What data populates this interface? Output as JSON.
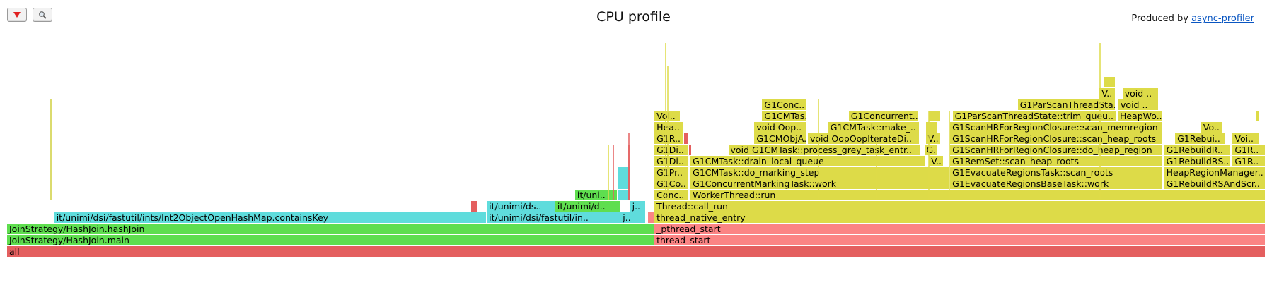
{
  "header": {
    "title": "CPU profile",
    "produced_prefix": "Produced by ",
    "produced_link": "async-profiler"
  },
  "toolbar": {
    "reverse_icon": "triangle-down-icon",
    "search_icon": "magnifier-icon"
  },
  "colors": {
    "red": "#e45f5f",
    "red_light": "#fb8484",
    "green": "#5fde4f",
    "green_dark": "#55d34b",
    "aqua": "#5fdcdc",
    "yellow": "#dddb48",
    "olive": "#cfcf3e",
    "link": "#0a56c2"
  },
  "frames": [
    {
      "level": 0,
      "start": 0.0,
      "end": 1.0,
      "color": "red",
      "label": "all"
    },
    {
      "level": 1,
      "start": 0.0,
      "end": 0.5144,
      "color": "green",
      "label": "JoinStrategy/HashJoin.main"
    },
    {
      "level": 1,
      "start": 0.5144,
      "end": 1.0,
      "color": "red_light",
      "label": "thread_start"
    },
    {
      "level": 2,
      "start": 0.0,
      "end": 0.5144,
      "color": "green",
      "label": "JoinStrategy/HashJoin.hashJoin"
    },
    {
      "level": 2,
      "start": 0.5144,
      "end": 1.0,
      "color": "red_light",
      "label": "_pthread_start"
    },
    {
      "level": 3,
      "start": 0.0375,
      "end": 0.3812,
      "color": "aqua",
      "label": "it/unimi/dsi/fastutil/ints/Int2ObjectOpenHashMap.containsKey"
    },
    {
      "level": 3,
      "start": 0.3812,
      "end": 0.4875,
      "color": "aqua",
      "label": "it/unimi/dsi/fastutil/in.."
    },
    {
      "level": 3,
      "start": 0.4875,
      "end": 0.5075,
      "color": "aqua",
      "label": "j.."
    },
    {
      "level": 3,
      "start": 0.5094,
      "end": 0.5144,
      "color": "red_light",
      "label": ""
    },
    {
      "level": 3,
      "start": 0.5144,
      "end": 1.0,
      "color": "yellow",
      "label": "thread_native_entry"
    },
    {
      "level": 4,
      "start": 0.3688,
      "end": 0.3738,
      "color": "red",
      "label": ""
    },
    {
      "level": 4,
      "start": 0.3812,
      "end": 0.4356,
      "color": "aqua",
      "label": "it/unimi/ds.."
    },
    {
      "level": 4,
      "start": 0.4356,
      "end": 0.4875,
      "color": "green",
      "label": "it/unimi/d.."
    },
    {
      "level": 4,
      "start": 0.495,
      "end": 0.5075,
      "color": "aqua",
      "label": "j.."
    },
    {
      "level": 4,
      "start": 0.5144,
      "end": 1.0,
      "color": "yellow",
      "label": "Thread::call_run"
    },
    {
      "level": 5,
      "start": 0.4513,
      "end": 0.485,
      "color": "green",
      "label": "it/uni.."
    },
    {
      "level": 5,
      "start": 0.485,
      "end": 0.495,
      "color": "aqua",
      "label": ""
    },
    {
      "level": 5,
      "start": 0.5144,
      "end": 0.5413,
      "color": "yellow",
      "label": "Conc.."
    },
    {
      "level": 5,
      "start": 0.5431,
      "end": 1.0,
      "color": "yellow",
      "label": "WorkerThread::run"
    },
    {
      "level": 6,
      "start": 0.485,
      "end": 0.495,
      "color": "aqua",
      "label": ""
    },
    {
      "level": 6,
      "start": 0.5144,
      "end": 0.5413,
      "color": "yellow",
      "label": "G1Co.."
    },
    {
      "level": 6,
      "start": 0.5431,
      "end": 0.7488,
      "color": "yellow",
      "label": "G1ConcurrentMarkingTask::work"
    },
    {
      "level": 6,
      "start": 0.7494,
      "end": 0.9181,
      "color": "yellow",
      "label": "G1EvacuateRegionsBaseTask::work"
    },
    {
      "level": 6,
      "start": 0.9194,
      "end": 1.0,
      "color": "yellow",
      "label": "G1RebuildRSAndScr.."
    },
    {
      "level": 7,
      "start": 0.485,
      "end": 0.495,
      "color": "aqua",
      "label": ""
    },
    {
      "level": 7,
      "start": 0.5144,
      "end": 0.5413,
      "color": "yellow",
      "label": "G1Pr.."
    },
    {
      "level": 7,
      "start": 0.5431,
      "end": 0.7488,
      "color": "yellow",
      "label": "G1CMTask::do_marking_step"
    },
    {
      "level": 7,
      "start": 0.7494,
      "end": 0.9181,
      "color": "yellow",
      "label": "G1EvacuateRegionsTask::scan_roots"
    },
    {
      "level": 7,
      "start": 0.9194,
      "end": 1.0,
      "color": "yellow",
      "label": "HeapRegionManager.."
    },
    {
      "level": 8,
      "start": 0.5144,
      "end": 0.5413,
      "color": "yellow",
      "label": "G1Di.."
    },
    {
      "level": 8,
      "start": 0.5431,
      "end": 0.73,
      "color": "yellow",
      "label": "G1CMTask::drain_local_queue"
    },
    {
      "level": 8,
      "start": 0.7325,
      "end": 0.7444,
      "color": "yellow",
      "label": "V.."
    },
    {
      "level": 8,
      "start": 0.7494,
      "end": 0.9181,
      "color": "yellow",
      "label": "G1RemSet::scan_heap_roots"
    },
    {
      "level": 8,
      "start": 0.9194,
      "end": 0.9725,
      "color": "yellow",
      "label": "G1RebuildRS.."
    },
    {
      "level": 8,
      "start": 0.9738,
      "end": 1.0,
      "color": "yellow",
      "label": "G1R.."
    },
    {
      "level": 9,
      "start": 0.5144,
      "end": 0.5413,
      "color": "yellow",
      "label": "G1Di.."
    },
    {
      "level": 9,
      "start": 0.5419,
      "end": 0.5444,
      "color": "red",
      "label": ""
    },
    {
      "level": 9,
      "start": 0.5731,
      "end": 0.7263,
      "color": "yellow",
      "label": "void G1CMTask::process_grey_task_entr.."
    },
    {
      "level": 9,
      "start": 0.7288,
      "end": 0.74,
      "color": "yellow",
      "label": "G.."
    },
    {
      "level": 9,
      "start": 0.7494,
      "end": 0.9181,
      "color": "yellow",
      "label": "G1ScanHRForRegionClosure::do_heap_region"
    },
    {
      "level": 9,
      "start": 0.9194,
      "end": 0.9725,
      "color": "yellow",
      "label": "G1RebuildR.."
    },
    {
      "level": 9,
      "start": 0.9738,
      "end": 1.0,
      "color": "yellow",
      "label": "G1R.."
    },
    {
      "level": 10,
      "start": 0.5144,
      "end": 0.5381,
      "color": "yellow",
      "label": "G1R.."
    },
    {
      "level": 10,
      "start": 0.5381,
      "end": 0.5413,
      "color": "red",
      "label": ""
    },
    {
      "level": 10,
      "start": 0.5938,
      "end": 0.635,
      "color": "yellow",
      "label": "G1CMObjA.."
    },
    {
      "level": 10,
      "start": 0.6363,
      "end": 0.725,
      "color": "yellow",
      "label": "void OopOopIterateDi.."
    },
    {
      "level": 10,
      "start": 0.73,
      "end": 0.7419,
      "color": "yellow",
      "label": "V.."
    },
    {
      "level": 10,
      "start": 0.7494,
      "end": 0.9181,
      "color": "yellow",
      "label": "G1ScanHRForRegionClosure::scan_heap_roots"
    },
    {
      "level": 10,
      "start": 0.9281,
      "end": 0.9681,
      "color": "yellow",
      "label": "G1Rebui.."
    },
    {
      "level": 10,
      "start": 0.9738,
      "end": 0.9956,
      "color": "yellow",
      "label": "Voi.."
    },
    {
      "level": 11,
      "start": 0.5144,
      "end": 0.5381,
      "color": "yellow",
      "label": "Hea.."
    },
    {
      "level": 11,
      "start": 0.5938,
      "end": 0.635,
      "color": "yellow",
      "label": "void Oop.."
    },
    {
      "level": 11,
      "start": 0.6525,
      "end": 0.725,
      "color": "yellow",
      "label": "G1CMTask::make_.."
    },
    {
      "level": 11,
      "start": 0.73,
      "end": 0.7394,
      "color": "yellow",
      "label": ""
    },
    {
      "level": 11,
      "start": 0.7494,
      "end": 0.9181,
      "color": "yellow",
      "label": "G1ScanHRForRegionClosure::scan_memregion"
    },
    {
      "level": 11,
      "start": 0.9488,
      "end": 0.9656,
      "color": "yellow",
      "label": "Vo.."
    },
    {
      "level": 12,
      "start": 0.5144,
      "end": 0.535,
      "color": "yellow",
      "label": "Voi.."
    },
    {
      "level": 12,
      "start": 0.6,
      "end": 0.635,
      "color": "yellow",
      "label": "G1CMTas.."
    },
    {
      "level": 12,
      "start": 0.6688,
      "end": 0.7238,
      "color": "yellow",
      "label": "G1Concurrent.."
    },
    {
      "level": 12,
      "start": 0.7325,
      "end": 0.7419,
      "color": "yellow",
      "label": ""
    },
    {
      "level": 12,
      "start": 0.7513,
      "end": 0.8819,
      "color": "yellow",
      "label": "G1ParScanThreadState::trim_queu.."
    },
    {
      "level": 12,
      "start": 0.8825,
      "end": 0.9181,
      "color": "yellow",
      "label": "HeapWo.."
    },
    {
      "level": 12,
      "start": 0.9919,
      "end": 0.9956,
      "color": "yellow",
      "label": ""
    },
    {
      "level": 13,
      "start": 0.6,
      "end": 0.635,
      "color": "yellow",
      "label": "G1Conc.."
    },
    {
      "level": 13,
      "start": 0.8031,
      "end": 0.8806,
      "color": "yellow",
      "label": "G1ParScanThreadSta.."
    },
    {
      "level": 13,
      "start": 0.8831,
      "end": 0.915,
      "color": "yellow",
      "label": "void .."
    },
    {
      "level": 14,
      "start": 0.8681,
      "end": 0.8806,
      "color": "yellow",
      "label": "V.."
    },
    {
      "level": 14,
      "start": 0.8863,
      "end": 0.915,
      "color": "yellow",
      "label": "void .."
    },
    {
      "level": 15,
      "start": 0.8713,
      "end": 0.8806,
      "color": "yellow",
      "label": ""
    }
  ]
}
